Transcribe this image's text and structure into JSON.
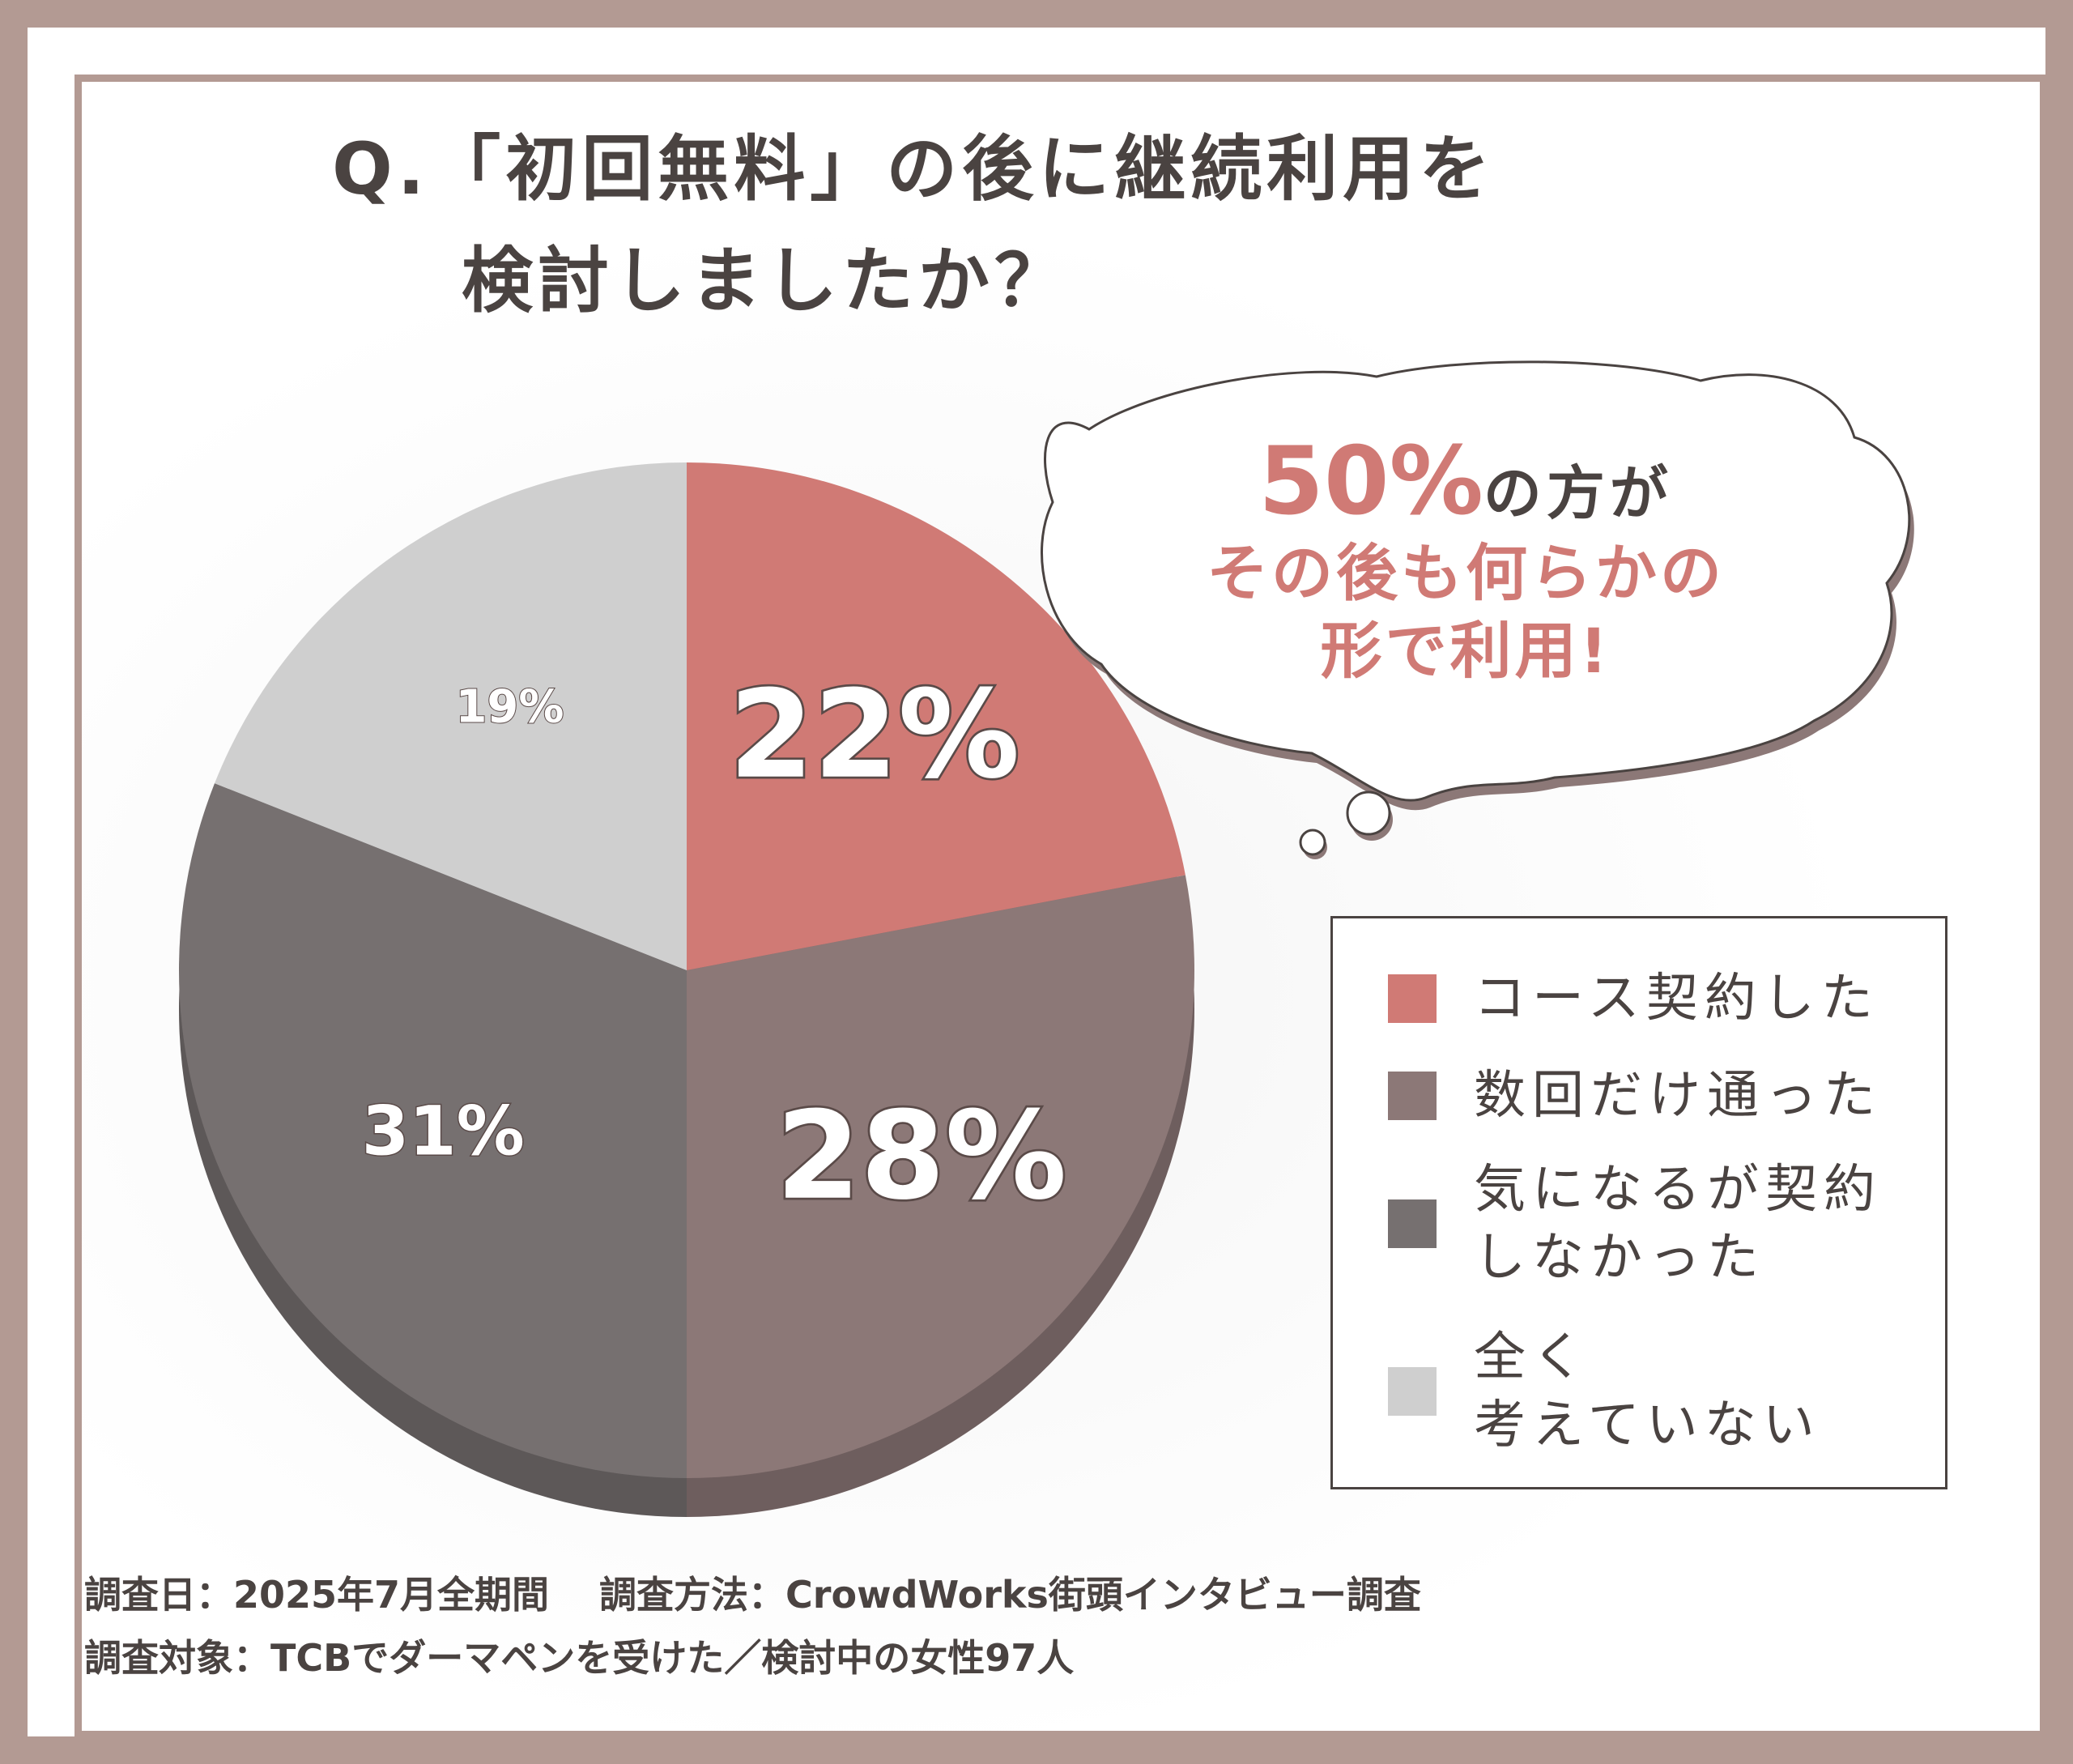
{
  "question": {
    "line1": "Q.「初回無料」の後に継続利用を",
    "line2": "検討しましたか？"
  },
  "callout": {
    "percent": "50%",
    "percent_suffix": "の方が",
    "line2": "その後も何らかの",
    "line3": "形で利用!"
  },
  "chart_data": {
    "type": "pie",
    "title": "Q.「初回無料」の後に継続利用を検討しましたか？",
    "slices": [
      {
        "label": "コース契約した",
        "value": 22,
        "display": "22%",
        "color": "#d07a75"
      },
      {
        "label": "数回だけ通った",
        "value": 28,
        "display": "28%",
        "color": "#8c7877"
      },
      {
        "label": "気になるが契約しなかった",
        "value": 31,
        "display": "31%",
        "color": "#767070"
      },
      {
        "label": "全く考えていない",
        "value": 19,
        "display": "19%",
        "color": "#cfcfcf"
      }
    ],
    "legend_position": "right"
  },
  "legend": {
    "items": [
      {
        "label": "コース契約した",
        "color": "#d07a75"
      },
      {
        "label": "数回だけ通った",
        "color": "#8c7877"
      },
      {
        "label": "気になるが契約\nしなかった",
        "color": "#767070"
      },
      {
        "label": "全く\n考えていない",
        "color": "#cfcfcf"
      }
    ]
  },
  "footer": {
    "line1": "調査日：2025年7月全期間　 調査方法：CrowdWorks街頭インタビュー調査",
    "line2": "調査対象：TCBでダーマペンを受けた／検討中の女性97人"
  }
}
